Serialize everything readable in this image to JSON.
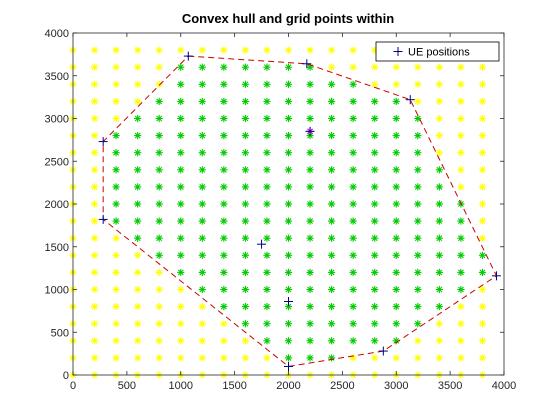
{
  "chart_data": {
    "type": "scatter",
    "title": "Convex hull and grid points within",
    "xlabel": "",
    "ylabel": "",
    "xlim": [
      0,
      4000
    ],
    "ylim": [
      0,
      4000
    ],
    "xticks": [
      0,
      500,
      1000,
      1500,
      2000,
      2500,
      3000,
      3500,
      4000
    ],
    "yticks": [
      0,
      500,
      1000,
      1500,
      2000,
      2500,
      3000,
      3500,
      4000
    ],
    "grid": false,
    "legend": {
      "location": "top-right",
      "entries": [
        "UE positions"
      ]
    },
    "grid_points": {
      "spacing": 200,
      "x_range": [
        0,
        3800
      ],
      "y_range": [
        0,
        3800
      ],
      "color_outside": "#ffff00",
      "color_inside": "#00cc00"
    },
    "series": [
      {
        "name": "UE positions",
        "marker": "+",
        "color": "#000080",
        "x": [
          1070,
          2170,
          3130,
          3930,
          2880,
          2000,
          280,
          280,
          2000,
          1750,
          2200
        ],
        "y": [
          3730,
          3640,
          3220,
          1160,
          280,
          100,
          1820,
          2730,
          860,
          1530,
          2850
        ]
      }
    ],
    "hull": {
      "color": "#cc0000",
      "style": "dashed",
      "x": [
        1070,
        2170,
        3130,
        3930,
        2880,
        2000,
        280,
        280,
        1070
      ],
      "y": [
        3730,
        3640,
        3220,
        1160,
        280,
        100,
        1820,
        2730,
        3730
      ]
    },
    "highlight_point": {
      "x": 2200,
      "y": 2850,
      "color": "#cc00cc"
    }
  }
}
